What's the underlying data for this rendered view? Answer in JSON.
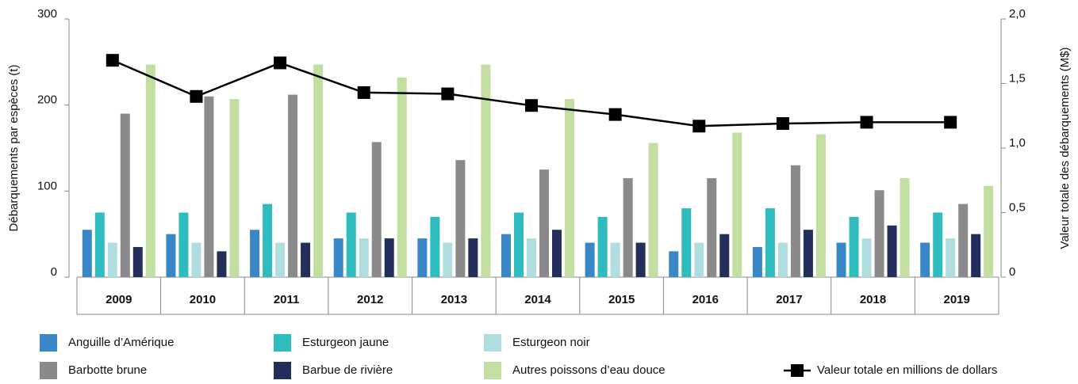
{
  "chart_data": {
    "type": "bar",
    "ylabel": "Débarquements par espèces (t)",
    "y2label": "Valeur totale des débarquements (M$)",
    "categories": [
      "2009",
      "2010",
      "2011",
      "2012",
      "2013",
      "2014",
      "2015",
      "2016",
      "2017",
      "2018",
      "2019"
    ],
    "series": [
      {
        "name": "Anguille d’Amérique",
        "color": "#3a87c8",
        "values": [
          55,
          50,
          55,
          45,
          45,
          50,
          40,
          30,
          35,
          40,
          40
        ]
      },
      {
        "name": "Esturgeon jaune",
        "color": "#2ebcbf",
        "values": [
          75,
          75,
          85,
          75,
          70,
          75,
          70,
          80,
          80,
          70,
          75
        ]
      },
      {
        "name": "Esturgeon noir",
        "color": "#b0dde0",
        "values": [
          40,
          40,
          40,
          45,
          40,
          45,
          40,
          40,
          40,
          45,
          45
        ]
      },
      {
        "name": "Barbotte brune",
        "color": "#8a8a8a",
        "values": [
          190,
          210,
          212,
          157,
          136,
          125,
          115,
          115,
          130,
          101,
          85
        ]
      },
      {
        "name": "Barbue de rivière",
        "color": "#232f5a",
        "values": [
          35,
          30,
          40,
          45,
          45,
          55,
          40,
          50,
          55,
          60,
          50
        ]
      },
      {
        "name": "Autres poissons d’eau douce",
        "color": "#c2dea0",
        "values": [
          247,
          207,
          247,
          232,
          247,
          207,
          156,
          168,
          166,
          115,
          106
        ]
      },
      {
        "name": "Valeur totale en millions de dollars",
        "color": "#000000",
        "axis": "y2",
        "values": [
          1.68,
          1.4,
          1.66,
          1.43,
          1.42,
          1.33,
          1.26,
          1.17,
          1.19,
          1.2,
          1.2
        ]
      }
    ],
    "ylim": [
      0,
      300
    ],
    "yticks": [
      0,
      100,
      200,
      300
    ],
    "y2lim": [
      0,
      2.0
    ],
    "y2ticks": [
      0,
      {
        "value": 0.5,
        "label": "0,5"
      },
      {
        "value": 1.0,
        "label": "1,0"
      },
      {
        "value": 1.5,
        "label": "1,5"
      },
      {
        "value": 2.0,
        "label": "2,0"
      }
    ],
    "grid": false
  }
}
